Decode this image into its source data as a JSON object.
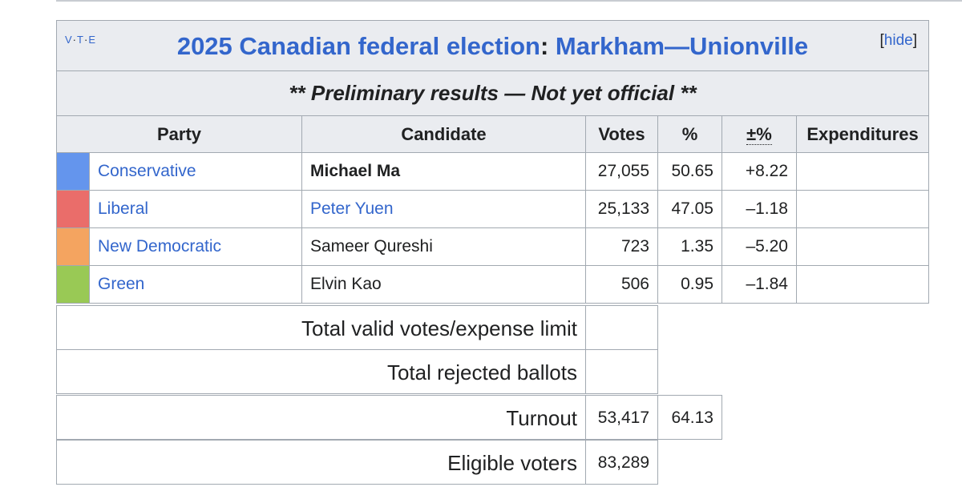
{
  "title": {
    "vte": [
      "V",
      "T",
      "E"
    ],
    "year_link": "2025 Canadian federal election",
    "separator": ":",
    "riding_link": "Markham—Unionville",
    "hide_label": "hide"
  },
  "notice": "** Preliminary results — Not yet official **",
  "columns": [
    "Party",
    "Candidate",
    "Votes",
    "%",
    "±%",
    "Expenditures"
  ],
  "rows": [
    {
      "color": "#6495ED",
      "party": "Conservative",
      "candidate": "Michael Ma",
      "votes": "27,055",
      "pct": "50.65",
      "change": "+8.22",
      "expenditures": ""
    },
    {
      "color": "#EA6D6A",
      "party": "Liberal",
      "candidate": "Peter Yuen",
      "votes": "25,133",
      "pct": "47.05",
      "change": "–1.18",
      "expenditures": ""
    },
    {
      "color": "#F4A460",
      "party": "New Democratic",
      "candidate": "Sameer Qureshi",
      "votes": "723",
      "pct": "1.35",
      "change": "–5.20",
      "expenditures": ""
    },
    {
      "color": "#99C955",
      "party": "Green",
      "candidate": "Elvin Kao",
      "votes": "506",
      "pct": "0.95",
      "change": "–1.84",
      "expenditures": ""
    }
  ],
  "summary": {
    "valid_label": "Total valid votes/expense limit",
    "rejected_label": "Total rejected ballots",
    "turnout_label": "Turnout",
    "turnout_votes": "53,417",
    "turnout_pct": "64.13",
    "eligible_label": "Eligible voters",
    "eligible_votes": "83,289"
  }
}
